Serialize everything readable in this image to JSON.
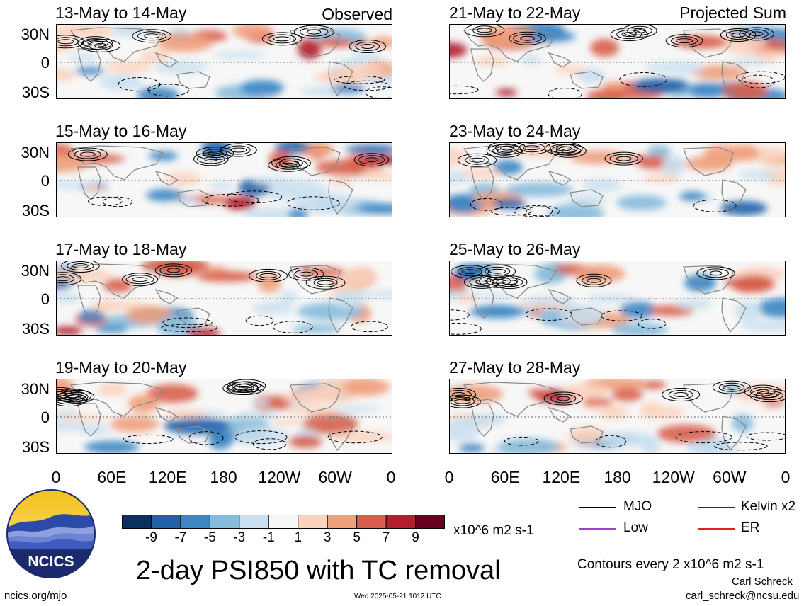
{
  "chart_data": {
    "type": "heatmap",
    "title": "2-day PSI850 with TC removal",
    "subtitle": "Contours every 2 x10^6 m2 s-1",
    "units": "x10^6 m2 s-1",
    "x_tick_labels": [
      "0",
      "60E",
      "120E",
      "180",
      "120W",
      "60W",
      "0"
    ],
    "y_tick_labels": [
      "30N",
      "0",
      "30S"
    ],
    "xlim": [
      0,
      360
    ],
    "ylim": [
      -40,
      40
    ],
    "colorbar": {
      "ticks": [
        "-9",
        "-7",
        "-5",
        "-3",
        "-1",
        "1",
        "3",
        "5",
        "7",
        "9"
      ],
      "colors": [
        "#0b2f5e",
        "#1f62a8",
        "#3b86c4",
        "#86bbdc",
        "#c9e0ef",
        "#f7f7f7",
        "#fbd2bc",
        "#f0a07d",
        "#d85f4c",
        "#b01f2b",
        "#67001f"
      ]
    },
    "legend": [
      {
        "label": "MJO",
        "color": "#000000"
      },
      {
        "label": "Kelvin x2",
        "color": "#1a1ae6"
      },
      {
        "label": "Low",
        "color": "#a040d8"
      },
      {
        "label": "ER",
        "color": "#e02020"
      }
    ],
    "panels": [
      {
        "label": "13-May to 14-May",
        "tag": "Observed"
      },
      {
        "label": "21-May to 22-May",
        "tag": "Projected Sum"
      },
      {
        "label": "15-May to 16-May",
        "tag": ""
      },
      {
        "label": "23-May to 24-May",
        "tag": ""
      },
      {
        "label": "17-May to 18-May",
        "tag": ""
      },
      {
        "label": "25-May to 26-May",
        "tag": ""
      },
      {
        "label": "19-May to 20-May",
        "tag": ""
      },
      {
        "label": "27-May to 28-May",
        "tag": ""
      }
    ]
  },
  "logo": {
    "text": "NCICS"
  },
  "footer": {
    "left": "ncics.org/mjo",
    "timestamp": "Wed 2025-05-21 1012 UTC",
    "author": "Carl Schreck",
    "email": "carl_schreck@ncsu.edu"
  }
}
